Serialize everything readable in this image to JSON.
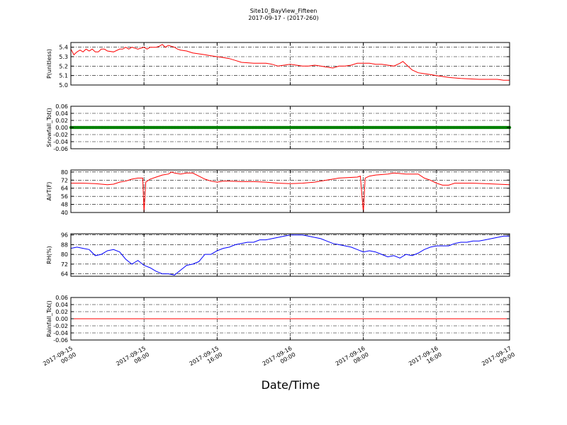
{
  "header": {
    "title": "Site10_BayView_Fifteen",
    "subtitle": "2017-09-17 - (2017-260)"
  },
  "xlabel": "Date/Time",
  "chart_data": [
    {
      "type": "line",
      "ylabel": "P(unitless)",
      "color": "#ff0000",
      "marker": false,
      "ylim": [
        5.0,
        5.45
      ],
      "yticks": [
        "5.4",
        "5.3",
        "5.2",
        "5.1",
        "5.0"
      ],
      "ytick_values": [
        5.4,
        5.3,
        5.2,
        5.1,
        5.0
      ],
      "grid": true,
      "points": [
        [
          0,
          5.38
        ],
        [
          0.5,
          5.32
        ],
        [
          1,
          5.35
        ],
        [
          1.5,
          5.37
        ],
        [
          2,
          5.35
        ],
        [
          2.5,
          5.38
        ],
        [
          3,
          5.36
        ],
        [
          3.5,
          5.38
        ],
        [
          4,
          5.35
        ],
        [
          4.5,
          5.35
        ],
        [
          5,
          5.38
        ],
        [
          5.5,
          5.38
        ],
        [
          6,
          5.36
        ],
        [
          7,
          5.35
        ],
        [
          8,
          5.38
        ],
        [
          8.5,
          5.38
        ],
        [
          9,
          5.4
        ],
        [
          9.5,
          5.38
        ],
        [
          10,
          5.4
        ],
        [
          11,
          5.38
        ],
        [
          12,
          5.4
        ],
        [
          12.5,
          5.38
        ],
        [
          13,
          5.4
        ],
        [
          14,
          5.4
        ],
        [
          14.5,
          5.41
        ],
        [
          15,
          5.43
        ],
        [
          15.5,
          5.4
        ],
        [
          16,
          5.42
        ],
        [
          17,
          5.4
        ],
        [
          17.5,
          5.38
        ],
        [
          18,
          5.37
        ],
        [
          19,
          5.36
        ],
        [
          20,
          5.34
        ],
        [
          21,
          5.33
        ],
        [
          22,
          5.32
        ],
        [
          23,
          5.31
        ],
        [
          24,
          5.3
        ],
        [
          25,
          5.29
        ],
        [
          26,
          5.28
        ],
        [
          27,
          5.26
        ],
        [
          28,
          5.24
        ],
        [
          30,
          5.23
        ],
        [
          32,
          5.23
        ],
        [
          33,
          5.22
        ],
        [
          34,
          5.2
        ],
        [
          35,
          5.21
        ],
        [
          36,
          5.22
        ],
        [
          37,
          5.21
        ],
        [
          38,
          5.2
        ],
        [
          39,
          5.2
        ],
        [
          40,
          5.21
        ],
        [
          41,
          5.2
        ],
        [
          42,
          5.19
        ],
        [
          43,
          5.18
        ],
        [
          44,
          5.2
        ],
        [
          45,
          5.2
        ],
        [
          46,
          5.21
        ],
        [
          47,
          5.23
        ],
        [
          48,
          5.23
        ],
        [
          49,
          5.23
        ],
        [
          50,
          5.22
        ],
        [
          51,
          5.22
        ],
        [
          52,
          5.21
        ],
        [
          53,
          5.2
        ],
        [
          54,
          5.23
        ],
        [
          54.5,
          5.25
        ],
        [
          55,
          5.22
        ],
        [
          56,
          5.16
        ],
        [
          57,
          5.13
        ],
        [
          58,
          5.12
        ],
        [
          59,
          5.11
        ],
        [
          60,
          5.1
        ],
        [
          61,
          5.09
        ],
        [
          62,
          5.08
        ],
        [
          64,
          5.07
        ],
        [
          67,
          5.06
        ],
        [
          70,
          5.06
        ],
        [
          71,
          5.05
        ],
        [
          72,
          5.05
        ]
      ]
    },
    {
      "type": "scatter",
      "ylabel": "Snowfall_Tot()",
      "color": "#008000",
      "marker": true,
      "ylim": [
        -0.06,
        0.06
      ],
      "yticks": [
        "0.06",
        "0.04",
        "0.02",
        "0.00",
        "-0.02",
        "-0.04",
        "-0.06"
      ],
      "ytick_values": [
        0.06,
        0.04,
        0.02,
        0.0,
        -0.02,
        -0.04,
        -0.06
      ],
      "grid": true,
      "constant": 0.0
    },
    {
      "type": "line",
      "ylabel": "AirT(F)",
      "color": "#ff0000",
      "marker": false,
      "ylim": [
        40,
        82
      ],
      "yticks": [
        "80",
        "72",
        "64",
        "56",
        "48",
        "40"
      ],
      "ytick_values": [
        80,
        72,
        64,
        56,
        48,
        40
      ],
      "grid": true,
      "points": [
        [
          0,
          69
        ],
        [
          2,
          69
        ],
        [
          4,
          68.5
        ],
        [
          6,
          67.5
        ],
        [
          7,
          68
        ],
        [
          8,
          70
        ],
        [
          9,
          71
        ],
        [
          10,
          73
        ],
        [
          11,
          74
        ],
        [
          11.8,
          74
        ],
        [
          12,
          40
        ],
        [
          12.3,
          70
        ],
        [
          13,
          73
        ],
        [
          14,
          75
        ],
        [
          15,
          77
        ],
        [
          16,
          78
        ],
        [
          16.5,
          80
        ],
        [
          17,
          79
        ],
        [
          18,
          78
        ],
        [
          19,
          79
        ],
        [
          20,
          79
        ],
        [
          21,
          76
        ],
        [
          22,
          73
        ],
        [
          23,
          71
        ],
        [
          24,
          70
        ],
        [
          25,
          71
        ],
        [
          26,
          71
        ],
        [
          28,
          70.5
        ],
        [
          30,
          70.5
        ],
        [
          32,
          70
        ],
        [
          34,
          69
        ],
        [
          36,
          68.5
        ],
        [
          38,
          69
        ],
        [
          40,
          70
        ],
        [
          42,
          72
        ],
        [
          44,
          74
        ],
        [
          47,
          75
        ],
        [
          47.5,
          76
        ],
        [
          48,
          40
        ],
        [
          48.3,
          74
        ],
        [
          49,
          76
        ],
        [
          50,
          77
        ],
        [
          52,
          78
        ],
        [
          53,
          79
        ],
        [
          55,
          78
        ],
        [
          57,
          78
        ],
        [
          58,
          74
        ],
        [
          59,
          72
        ],
        [
          60,
          69
        ],
        [
          61,
          67
        ],
        [
          62,
          67
        ],
        [
          63,
          69
        ],
        [
          64,
          69
        ],
        [
          66,
          69
        ],
        [
          68,
          68.5
        ],
        [
          70,
          68
        ],
        [
          72,
          67.5
        ]
      ]
    },
    {
      "type": "line",
      "ylabel": "RH(%)",
      "color": "#0000ff",
      "marker": false,
      "ylim": [
        62,
        97
      ],
      "yticks": [
        "96",
        "88",
        "80",
        "72",
        "64"
      ],
      "ytick_values": [
        96,
        88,
        80,
        72,
        64
      ],
      "grid": true,
      "points": [
        [
          0,
          85
        ],
        [
          1,
          86
        ],
        [
          2,
          85
        ],
        [
          3,
          84
        ],
        [
          4,
          79
        ],
        [
          5,
          80
        ],
        [
          6,
          83
        ],
        [
          7,
          84
        ],
        [
          8,
          82
        ],
        [
          9,
          76
        ],
        [
          10,
          72
        ],
        [
          11,
          75
        ],
        [
          12,
          71
        ],
        [
          13,
          69
        ],
        [
          14,
          66
        ],
        [
          15,
          64
        ],
        [
          16,
          64
        ],
        [
          17,
          63
        ],
        [
          18,
          67
        ],
        [
          19,
          71
        ],
        [
          20,
          72
        ],
        [
          21,
          74
        ],
        [
          22,
          80
        ],
        [
          23,
          80
        ],
        [
          24,
          83
        ],
        [
          25,
          85
        ],
        [
          26,
          86
        ],
        [
          27,
          88
        ],
        [
          28,
          89
        ],
        [
          29,
          90
        ],
        [
          30,
          90
        ],
        [
          31,
          92
        ],
        [
          32,
          92
        ],
        [
          33,
          93
        ],
        [
          34,
          94
        ],
        [
          35,
          95
        ],
        [
          36,
          96
        ],
        [
          37,
          96
        ],
        [
          38,
          96
        ],
        [
          39,
          95
        ],
        [
          40,
          94
        ],
        [
          41,
          93
        ],
        [
          42,
          91
        ],
        [
          43,
          89
        ],
        [
          44,
          88
        ],
        [
          45,
          87
        ],
        [
          46,
          86
        ],
        [
          47,
          84
        ],
        [
          48,
          82
        ],
        [
          49,
          83
        ],
        [
          50,
          82
        ],
        [
          51,
          80
        ],
        [
          52,
          78
        ],
        [
          53,
          79
        ],
        [
          54,
          77
        ],
        [
          55,
          80
        ],
        [
          56,
          79
        ],
        [
          57,
          81
        ],
        [
          58,
          84
        ],
        [
          59,
          86
        ],
        [
          60,
          87
        ],
        [
          62,
          87
        ],
        [
          63,
          89
        ],
        [
          64,
          90
        ],
        [
          65,
          90
        ],
        [
          66,
          91
        ],
        [
          67,
          91
        ],
        [
          68,
          92
        ],
        [
          69,
          93
        ],
        [
          70,
          94
        ],
        [
          71,
          95
        ],
        [
          72,
          95
        ]
      ]
    },
    {
      "type": "line",
      "ylabel": "Rainfall_Tot()",
      "color": "#ff0000",
      "marker": false,
      "ylim": [
        -0.06,
        0.06
      ],
      "yticks": [
        "0.06",
        "0.04",
        "0.02",
        "0.00",
        "-0.02",
        "-0.04",
        "-0.06"
      ],
      "ytick_values": [
        0.06,
        0.04,
        0.02,
        0.0,
        -0.02,
        -0.04,
        -0.06
      ],
      "grid": true,
      "constant": 0.0
    }
  ],
  "xaxis": {
    "xlim_hours": [
      0,
      72
    ],
    "ticks": [
      {
        "line1": "2017-09-15",
        "line2": "00:00",
        "hours": 0
      },
      {
        "line1": "2017-09-15",
        "line2": "08:00",
        "hours": 12
      },
      {
        "line1": "2017-09-15",
        "line2": "16:00",
        "hours": 24
      },
      {
        "line1": "2017-09-16",
        "line2": "00:00",
        "hours": 36
      },
      {
        "line1": "2017-09-16",
        "line2": "08:00",
        "hours": 48
      },
      {
        "line1": "2017-09-16",
        "line2": "16:00",
        "hours": 60
      },
      {
        "line1": "2017-09-17",
        "line2": "00:00",
        "hours": 72
      }
    ]
  }
}
